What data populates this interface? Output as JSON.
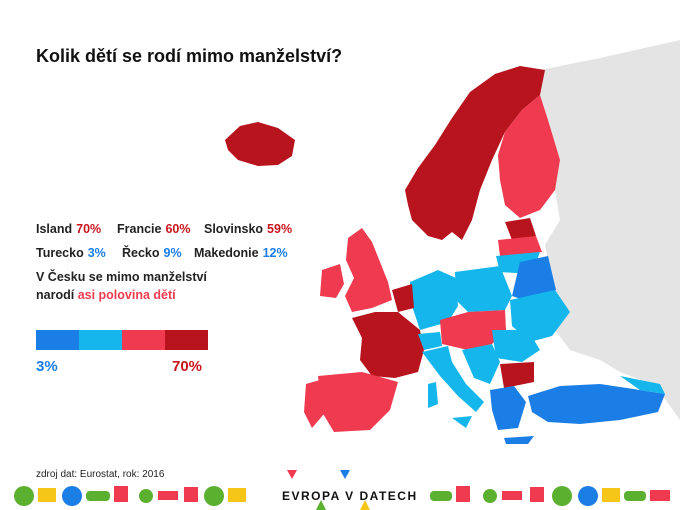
{
  "title": "Kolik dětí se rodí mimo manželství?",
  "stats": [
    {
      "country": "Island",
      "value": "70%",
      "tone": "red"
    },
    {
      "country": "Francie",
      "value": "60%",
      "tone": "red"
    },
    {
      "country": "Slovinsko",
      "value": "59%",
      "tone": "red"
    },
    {
      "country": "Turecko",
      "value": "3%",
      "tone": "blue"
    },
    {
      "country": "Řecko",
      "value": "9%",
      "tone": "blue"
    },
    {
      "country": "Makedonie",
      "value": "12%",
      "tone": "blue"
    }
  ],
  "note": {
    "line1": "V Česku se mimo manželství",
    "line2_prefix": "narodí",
    "line2_highlight": "asi polovina dětí"
  },
  "legend": {
    "min_label": "3%",
    "max_label": "70%",
    "colors": [
      "#1a7ee6",
      "#14b6ec",
      "#ef3a4f",
      "#b8141e"
    ]
  },
  "source": "zdroj dat: Eurostat, rok: 2016",
  "brand": "EVROPA V DATECH",
  "palette": {
    "darkred": "#b8141e",
    "red": "#ef3a4f",
    "cyan": "#14b6ec",
    "blue": "#1a7ee6",
    "grey": "#e4e4e4"
  }
}
